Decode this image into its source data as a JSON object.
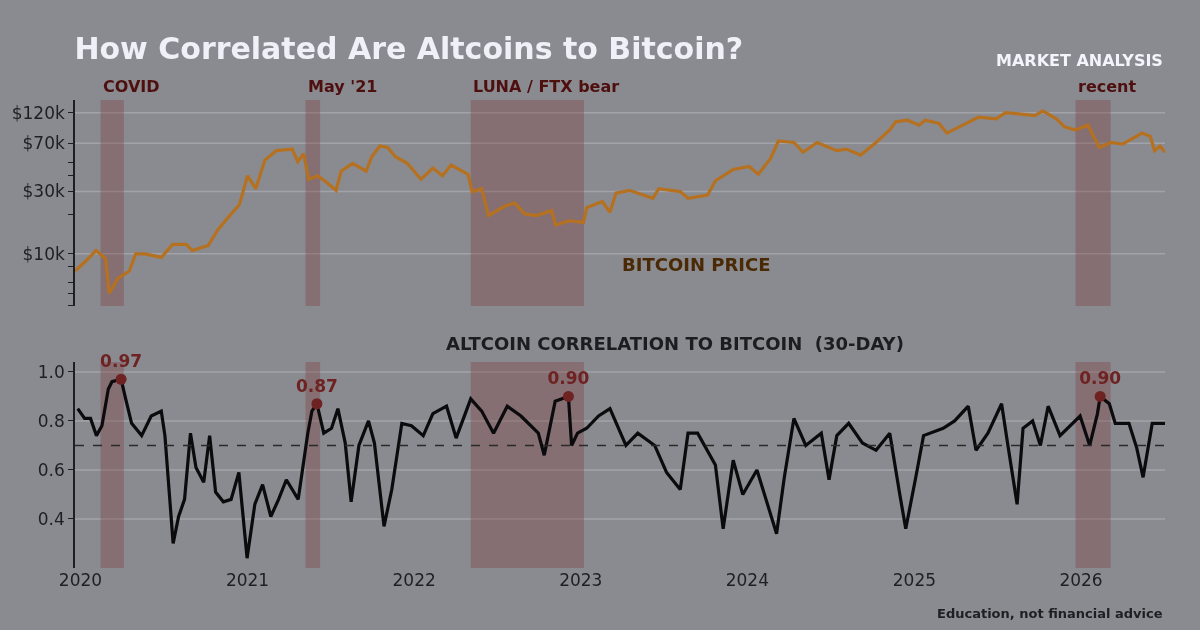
{
  "chart_data": [
    {
      "type": "line",
      "title": "How Correlated Are Altcoins to Bitcoin?",
      "subtitle": "BITCOIN PRICE",
      "annotations": [
        "MARKET ANALYSIS"
      ],
      "x": [
        "2019-12-20",
        "2020-01-14",
        "2020-02-04",
        "2020-02-25",
        "2020-03-04",
        "2020-03-23",
        "2020-04-17",
        "2020-05-01",
        "2020-05-21",
        "2020-06-26",
        "2020-07-21",
        "2020-08-20",
        "2020-09-02",
        "2020-10-07",
        "2020-10-28",
        "2020-11-23",
        "2020-12-14",
        "2021-01-01",
        "2021-01-19",
        "2021-02-08",
        "2021-03-05",
        "2021-04-09",
        "2021-04-21",
        "2021-05-04",
        "2021-05-15",
        "2021-06-03",
        "2021-06-19",
        "2021-07-14",
        "2021-07-25",
        "2021-08-19",
        "2021-09-18",
        "2021-09-30",
        "2021-10-18",
        "2021-11-04",
        "2021-11-21",
        "2021-12-17",
        "2022-01-16",
        "2022-02-11",
        "2022-03-04",
        "2022-03-23",
        "2022-04-29",
        "2022-05-08",
        "2022-05-29",
        "2022-06-13",
        "2022-07-19",
        "2022-08-09",
        "2022-08-31",
        "2022-09-26",
        "2022-10-29",
        "2022-11-07",
        "2022-12-07",
        "2023-01-07",
        "2023-01-14",
        "2023-02-17",
        "2023-03-06",
        "2023-03-19",
        "2023-04-18",
        "2023-06-08",
        "2023-06-21",
        "2023-08-07",
        "2023-08-24",
        "2023-10-06",
        "2023-10-23",
        "2023-12-01",
        "2024-01-05",
        "2024-01-25",
        "2024-02-21",
        "2024-03-09",
        "2024-04-12",
        "2024-05-02",
        "2024-06-02",
        "2024-07-15",
        "2024-08-05",
        "2024-09-05",
        "2024-10-09",
        "2024-11-08",
        "2024-11-21",
        "2024-12-17",
        "2025-01-11",
        "2025-01-25",
        "2025-02-24",
        "2025-03-13",
        "2025-04-17",
        "2025-05-21",
        "2025-06-29",
        "2025-07-20",
        "2025-08-23",
        "2025-09-22",
        "2025-10-09",
        "2025-11-08",
        "2025-11-26",
        "2025-12-20",
        "2026-01-16",
        "2026-02-10",
        "2026-03-08",
        "2026-04-02",
        "2026-05-15",
        "2026-06-02",
        "2026-06-11",
        "2026-06-23",
        "2026-07-04"
      ],
      "series": [
        {
          "color": "#b5711f",
          "values": [
            7400,
            8900,
            10600,
            9200,
            5000,
            6500,
            7400,
            10000,
            10000,
            9400,
            11800,
            11800,
            10600,
            11600,
            15300,
            19600,
            23700,
            39500,
            31500,
            52100,
            61500,
            63200,
            50700,
            58200,
            37200,
            39500,
            36200,
            30600,
            42800,
            49200,
            42800,
            55300,
            66800,
            65000,
            55300,
            49200,
            37200,
            45300,
            39500,
            47800,
            40600,
            29900,
            31500,
            19600,
            23200,
            24500,
            20200,
            19600,
            21400,
            16600,
            17900,
            17400,
            22500,
            25100,
            20800,
            29100,
            30600,
            26600,
            31500,
            29900,
            26600,
            28200,
            36200,
            44100,
            46600,
            40600,
            53700,
            72900,
            71000,
            59800,
            71000,
            61500,
            63200,
            56900,
            71000,
            88500,
            102100,
            105200,
            96400,
            105200,
            99200,
            83800,
            96400,
            110700,
            107600,
            120000,
            117000,
            113800,
            123900,
            107600,
            93500,
            88500,
            96400,
            65100,
            71000,
            68900,
            83800,
            79100,
            61500,
            66800,
            59800
          ]
        }
      ],
      "xlim": [
        "2019-12-20",
        "2026-07-04"
      ],
      "xticks": [
        "2020",
        "2021",
        "2022",
        "2023",
        "2024",
        "2025",
        "2026"
      ],
      "ylim": [
        4000,
        150000
      ],
      "log": true,
      "yticks": [
        {
          "value": 4000,
          "label": null
        },
        {
          "value": 5000,
          "label": null
        },
        {
          "value": 6000,
          "label": null
        },
        {
          "value": 8000,
          "label": null
        },
        {
          "value": 10000,
          "label": "$10k"
        },
        {
          "value": 20000,
          "label": null
        },
        {
          "value": 30000,
          "label": "$30k"
        },
        {
          "value": 40000,
          "label": null
        },
        {
          "value": 50000,
          "label": null
        },
        {
          "value": 70000,
          "label": "$70k"
        },
        {
          "value": 120000,
          "label": "$120k"
        }
      ],
      "grid": "y",
      "tick_labels": "y",
      "bands": [
        {
          "axis": "x",
          "from": "2020-02-14",
          "to": "2020-04-05",
          "label": "COVID",
          "color": "#7a3b3b"
        },
        {
          "axis": "x",
          "from": "2021-05-08",
          "to": "2021-06-09",
          "label": "May '21",
          "color": "#7a3b3b"
        },
        {
          "axis": "x",
          "from": "2022-05-05",
          "to": "2023-01-08",
          "label": "LUNA / FTX bear",
          "color": "#7a3b3b"
        },
        {
          "axis": "x",
          "from": "2025-12-20",
          "to": "2026-03-07",
          "label": "recent",
          "color": "#7a3b3b"
        }
      ]
    },
    {
      "type": "line",
      "title": "ALTCOIN CORRELATION TO BITCOIN  (30-DAY)",
      "annotations": [
        "Education, not financial advice"
      ],
      "series": [
        {
          "color": "#0b0b0d",
          "x": [
            "2019-12-26",
            "2020-01-10",
            "2020-01-23",
            "2020-02-05",
            "2020-02-17",
            "2020-03-02",
            "2020-03-10",
            "2020-03-30",
            "2020-04-09",
            "2020-04-22",
            "2020-05-14",
            "2020-06-04",
            "2020-06-26",
            "2020-07-04",
            "2020-07-22",
            "2020-08-03",
            "2020-08-16",
            "2020-08-29",
            "2020-09-10",
            "2020-09-27",
            "2020-10-10",
            "2020-10-23",
            "2020-11-09",
            "2020-11-26",
            "2020-12-13",
            "2020-12-31",
            "2021-01-17",
            "2021-02-03",
            "2021-02-21",
            "2021-03-10",
            "2021-03-27",
            "2021-04-22",
            "2021-05-13",
            "2021-05-22",
            "2021-06-02",
            "2021-06-17",
            "2021-07-04",
            "2021-07-18",
            "2021-08-03",
            "2021-08-16",
            "2021-09-02",
            "2021-09-23",
            "2021-10-06",
            "2021-10-27",
            "2021-11-13",
            "2021-12-05",
            "2021-12-26",
            "2022-01-21",
            "2022-02-11",
            "2022-03-13",
            "2022-04-03",
            "2022-05-05",
            "2022-05-29",
            "2022-06-24",
            "2022-07-24",
            "2022-08-23",
            "2022-09-30",
            "2022-10-13",
            "2022-11-06",
            "2022-12-05",
            "2022-12-12",
            "2022-12-25",
            "2023-01-14",
            "2023-02-09",
            "2023-03-06",
            "2023-04-10",
            "2023-05-06",
            "2023-06-12",
            "2023-07-08",
            "2023-08-07",
            "2023-08-24",
            "2023-09-14",
            "2023-10-23",
            "2023-11-09",
            "2023-12-01",
            "2023-12-22",
            "2024-01-22",
            "2024-03-05",
            "2024-03-22",
            "2024-04-12",
            "2024-05-08",
            "2024-06-11",
            "2024-06-28",
            "2024-07-15",
            "2024-08-10",
            "2024-09-09",
            "2024-10-09",
            "2024-11-08",
            "2024-11-30",
            "2024-12-13",
            "2025-01-04",
            "2025-01-21",
            "2025-03-05",
            "2025-03-30",
            "2025-04-29",
            "2025-05-16",
            "2025-06-11",
            "2025-07-11",
            "2025-07-24",
            "2025-08-14",
            "2025-08-27",
            "2025-09-17",
            "2025-10-04",
            "2025-10-21",
            "2025-11-16",
            "2025-12-30",
            "2026-01-20",
            "2026-02-06",
            "2026-02-12",
            "2026-03-04",
            "2026-03-17",
            "2026-04-16",
            "2026-05-03",
            "2026-05-17",
            "2026-06-06",
            "2026-07-04"
          ],
          "values": [
            0.85,
            0.81,
            0.81,
            0.74,
            0.78,
            0.93,
            0.96,
            0.97,
            0.89,
            0.79,
            0.74,
            0.82,
            0.84,
            0.74,
            0.3,
            0.41,
            0.48,
            0.75,
            0.61,
            0.55,
            0.74,
            0.51,
            0.47,
            0.48,
            0.59,
            0.24,
            0.46,
            0.54,
            0.41,
            0.48,
            0.56,
            0.48,
            0.75,
            0.84,
            0.87,
            0.75,
            0.77,
            0.85,
            0.71,
            0.47,
            0.7,
            0.8,
            0.71,
            0.37,
            0.52,
            0.79,
            0.78,
            0.74,
            0.83,
            0.86,
            0.73,
            0.89,
            0.84,
            0.75,
            0.86,
            0.82,
            0.75,
            0.66,
            0.88,
            0.9,
            0.7,
            0.75,
            0.77,
            0.82,
            0.85,
            0.7,
            0.75,
            0.7,
            0.59,
            0.52,
            0.75,
            0.75,
            0.62,
            0.36,
            0.64,
            0.5,
            0.6,
            0.34,
            0.57,
            0.81,
            0.7,
            0.75,
            0.56,
            0.74,
            0.79,
            0.71,
            0.68,
            0.75,
            0.5,
            0.36,
            0.57,
            0.74,
            0.77,
            0.8,
            0.86,
            0.68,
            0.75,
            0.87,
            0.71,
            0.46,
            0.77,
            0.8,
            0.7,
            0.86,
            0.74,
            0.82,
            0.7,
            0.83,
            0.9,
            0.87,
            0.79,
            0.79,
            0.69,
            0.57,
            0.79,
            0.79
          ]
        },
        {
          "type": "scatter",
          "color": "#6e2222",
          "marker": "circle",
          "x": [
            "2020-03-30",
            "2021-06-02",
            "2022-12-05",
            "2026-02-12"
          ],
          "values": [
            0.97,
            0.87,
            0.9,
            0.9
          ],
          "value_labels": [
            "0.97",
            "0.87",
            "0.90",
            "0.90"
          ]
        }
      ],
      "xlim": [
        "2019-12-20",
        "2026-07-04"
      ],
      "xticks": [
        "2020",
        "2021",
        "2022",
        "2023",
        "2024",
        "2025",
        "2026"
      ],
      "ylim": [
        0.2,
        1.04
      ],
      "yticks": [
        {
          "value": 0.4,
          "label": "0.4"
        },
        {
          "value": 0.6,
          "label": "0.6"
        },
        {
          "value": 0.8,
          "label": "0.8"
        },
        {
          "value": 1.0,
          "label": "1.0"
        }
      ],
      "grid": "y",
      "ref_lines": [
        {
          "axis": "y",
          "value": 0.7,
          "color": "#2a2a2a",
          "line_style": "dashed"
        }
      ],
      "bands": [
        {
          "axis": "x",
          "from": "2020-02-14",
          "to": "2020-04-05",
          "color": "#7a3b3b"
        },
        {
          "axis": "x",
          "from": "2021-05-08",
          "to": "2021-06-09",
          "color": "#7a3b3b"
        },
        {
          "axis": "x",
          "from": "2022-05-05",
          "to": "2023-01-08",
          "color": "#7a3b3b"
        },
        {
          "axis": "x",
          "from": "2025-12-20",
          "to": "2026-03-07",
          "color": "#7a3b3b"
        }
      ]
    }
  ]
}
